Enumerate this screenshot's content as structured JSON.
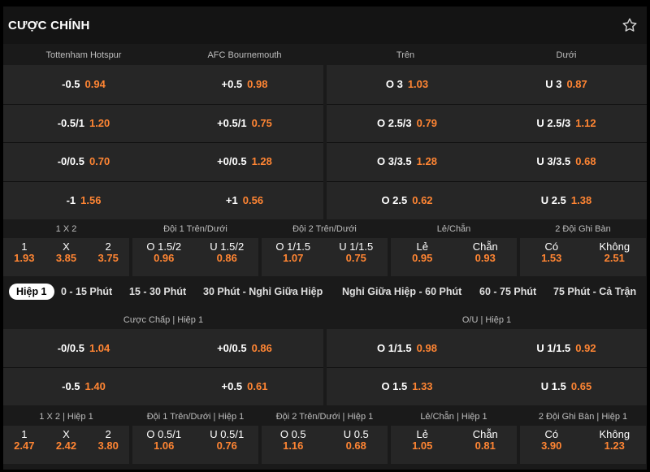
{
  "header": {
    "title": "CƯỢC CHÍNH",
    "star_icon": "star-icon"
  },
  "main": {
    "cols": [
      "Tottenham Hotspur",
      "AFC Bournemouth",
      "Trên",
      "Dưới"
    ],
    "handicap": [
      {
        "h": "-0.5",
        "ho": "0.94",
        "a": "+0.5",
        "ao": "0.98"
      },
      {
        "h": "-0.5/1",
        "ho": "1.20",
        "a": "+0.5/1",
        "ao": "0.75"
      },
      {
        "h": "-0/0.5",
        "ho": "0.70",
        "a": "+0/0.5",
        "ao": "1.28"
      },
      {
        "h": "-1",
        "ho": "1.56",
        "a": "+1",
        "ao": "0.56"
      }
    ],
    "overunder": [
      {
        "o": "O 3",
        "oo": "1.03",
        "u": "U 3",
        "uo": "0.87"
      },
      {
        "o": "O 2.5/3",
        "oo": "0.79",
        "u": "U 2.5/3",
        "uo": "1.12"
      },
      {
        "o": "O 3/3.5",
        "oo": "1.28",
        "u": "U 3/3.5",
        "uo": "0.68"
      },
      {
        "o": "O 2.5",
        "oo": "0.62",
        "u": "U 2.5",
        "uo": "1.38"
      }
    ]
  },
  "markets1": {
    "heads": [
      "1 X 2",
      "Đội 1 Trên/Dưới",
      "Đội 2 Trên/Dưới",
      "Lẻ/Chẵn",
      "2 Đội Ghi Bàn"
    ],
    "groups": [
      [
        {
          "l": "1",
          "o": "1.93"
        },
        {
          "l": "X",
          "o": "3.85"
        },
        {
          "l": "2",
          "o": "3.75"
        }
      ],
      [
        {
          "l": "O 1.5/2",
          "o": "0.96"
        },
        {
          "l": "U 1.5/2",
          "o": "0.86"
        }
      ],
      [
        {
          "l": "O 1/1.5",
          "o": "1.07"
        },
        {
          "l": "U 1/1.5",
          "o": "0.75"
        }
      ],
      [
        {
          "l": "Lẻ",
          "o": "0.95"
        },
        {
          "l": "Chẵn",
          "o": "0.93"
        }
      ],
      [
        {
          "l": "Có",
          "o": "1.53"
        },
        {
          "l": "Không",
          "o": "2.51"
        }
      ]
    ]
  },
  "tabs": [
    "Hiệp 1",
    "0 - 15 Phút",
    "15 - 30 Phút",
    "30 Phút - Nghỉ Giữa Hiệp",
    "Nghỉ Giữa Hiệp - 60 Phút",
    "60 - 75 Phút",
    "75 Phút - Cả Trận"
  ],
  "half": {
    "heads": [
      "Cược Chấp | Hiệp 1",
      "O/U | Hiệp 1"
    ],
    "handicap": [
      {
        "h": "-0/0.5",
        "ho": "1.04",
        "a": "+0/0.5",
        "ao": "0.86"
      },
      {
        "h": "-0.5",
        "ho": "1.40",
        "a": "+0.5",
        "ao": "0.61"
      }
    ],
    "overunder": [
      {
        "o": "O 1/1.5",
        "oo": "0.98",
        "u": "U 1/1.5",
        "uo": "0.92"
      },
      {
        "o": "O 1.5",
        "oo": "1.33",
        "u": "U 1.5",
        "uo": "0.65"
      }
    ]
  },
  "markets2": {
    "heads": [
      "1 X 2 | Hiệp 1",
      "Đội 1 Trên/Dưới | Hiệp 1",
      "Đội 2 Trên/Dưới | Hiệp 1",
      "Lẻ/Chẵn | Hiệp 1",
      "2 Đội Ghi Bàn | Hiệp 1"
    ],
    "groups": [
      [
        {
          "l": "1",
          "o": "2.47"
        },
        {
          "l": "X",
          "o": "2.42"
        },
        {
          "l": "2",
          "o": "3.80"
        }
      ],
      [
        {
          "l": "O 0.5/1",
          "o": "1.06"
        },
        {
          "l": "U 0.5/1",
          "o": "0.76"
        }
      ],
      [
        {
          "l": "O 0.5",
          "o": "1.16"
        },
        {
          "l": "U 0.5",
          "o": "0.68"
        }
      ],
      [
        {
          "l": "Lẻ",
          "o": "1.05"
        },
        {
          "l": "Chẵn",
          "o": "0.81"
        }
      ],
      [
        {
          "l": "Có",
          "o": "3.90"
        },
        {
          "l": "Không",
          "o": "1.23"
        }
      ]
    ]
  },
  "colors": {
    "odds": "#ff8533",
    "panel": "#262626",
    "bg": "#1a1a1a"
  }
}
